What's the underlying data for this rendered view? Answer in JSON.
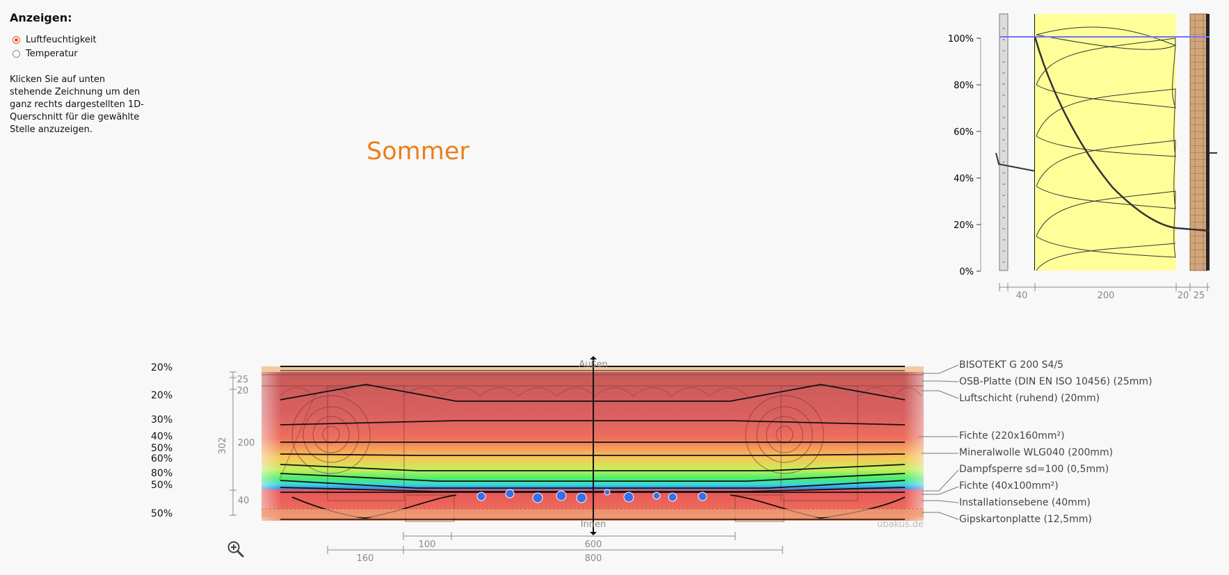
{
  "sidebar": {
    "title": "Anzeigen:",
    "options": [
      {
        "label": "Luftfeuchtigkeit",
        "selected": true
      },
      {
        "label": "Temperatur",
        "selected": false
      }
    ],
    "help_text": "Klicken Sie auf unten stehende Zeichnung um den ganz rechts dargestellten 1D-Querschnitt für die gewählte Stelle anzuzeigen."
  },
  "season_label": "Sommer",
  "profile_chart": {
    "y_ticks": [
      "100%",
      "80%",
      "60%",
      "40%",
      "20%",
      "0%"
    ],
    "dimensions": [
      "40",
      "200",
      "20",
      "25"
    ]
  },
  "cross_section": {
    "left_labels": [
      "20%",
      "20%",
      "30%",
      "40%",
      "50%",
      "60%",
      "80%",
      "50%",
      "50%"
    ],
    "outside_label": "Außen",
    "inside_label": "Innen",
    "watermark": "ubakus.de",
    "thickness_labels": [
      "25",
      "20",
      "302",
      "200",
      "40"
    ],
    "bottom_dimensions": [
      "100",
      "600",
      "160",
      "800"
    ],
    "layers": [
      "BISOTEKT G 200 S4/5",
      "OSB-Platte (DIN EN ISO 10456) (25mm)",
      "Luftschicht (ruhend) (20mm)",
      "Fichte (220x160mm²)",
      "Mineralwolle WLG040 (200mm)",
      "Dampfsperre sd=100 (0,5mm)",
      "Fichte (40x100mm²)",
      "Installationsebene (40mm)",
      "Gipskartonplatte (12,5mm)"
    ]
  },
  "colors": {
    "accent": "#e0501e",
    "season": "#ef7d1a",
    "insulation": "#ffff99",
    "humidity_line": "#7070ff"
  },
  "icons": {
    "zoom": "zoom-in-icon"
  }
}
